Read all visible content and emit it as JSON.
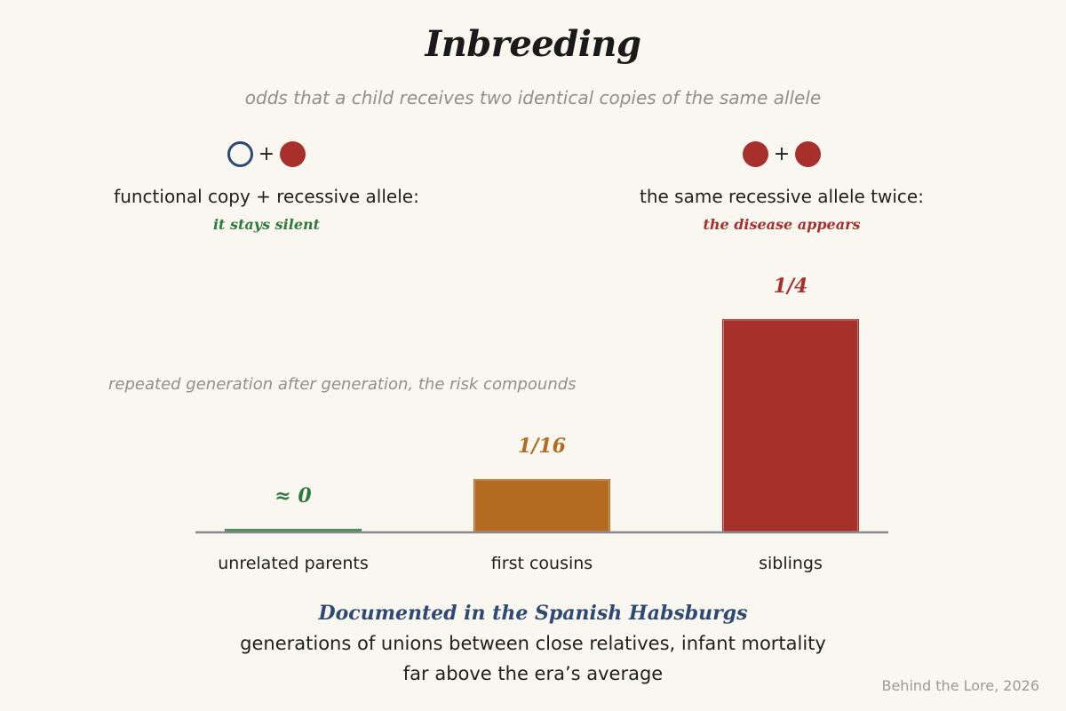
{
  "header": {
    "title": "Inbreeding",
    "subtitle": "odds that a child receives two identical copies of the same allele"
  },
  "legend": {
    "left": {
      "caption": "functional copy + recessive allele:",
      "note": "it stays silent",
      "plus": "+"
    },
    "right": {
      "caption": "the same recessive allele twice:",
      "note": "the disease appears",
      "plus": "+"
    }
  },
  "annotation": "repeated generation after generation, the risk compounds",
  "chart_data": {
    "type": "bar",
    "categories": [
      "unrelated parents",
      "first cousins",
      "siblings"
    ],
    "values": [
      0.003,
      0.0625,
      0.25
    ],
    "value_labels": [
      "≈ 0",
      "1/16",
      "1/4"
    ],
    "colors": [
      "#2e7a3c",
      "#b36b22",
      "#a8302c"
    ],
    "ylim": [
      0,
      0.25
    ],
    "grid": false
  },
  "footer": {
    "doc_title": "Documented in the Spanish Habsburgs",
    "doc_line1": "generations of unions between close relatives, infant mortality",
    "doc_line2": "far above the era’s average",
    "credit": "Behind the Lore, 2026"
  },
  "colors": {
    "background": "#faf7f1",
    "functional": "#2d4a73",
    "recessive": "#a8302c",
    "green": "#2e7a3c",
    "orange": "#b36b22",
    "muted": "#8f8f8f"
  }
}
